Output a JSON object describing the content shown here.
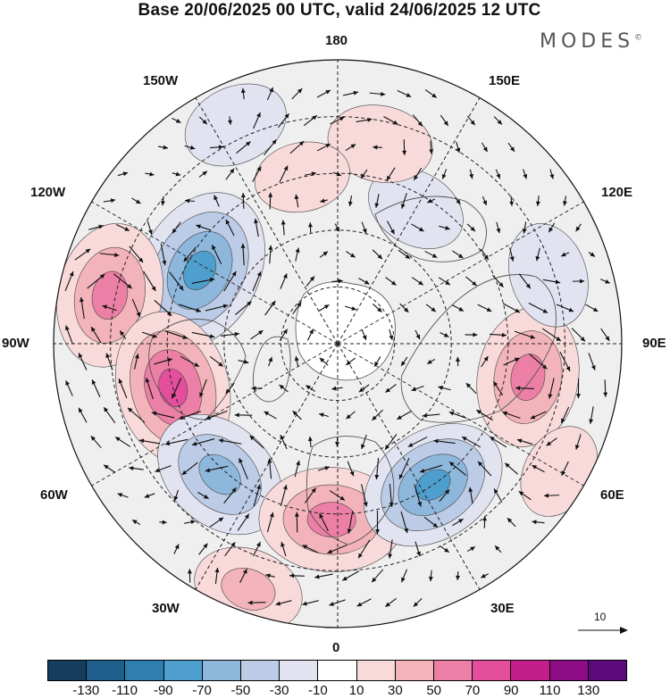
{
  "title": "Base 20/06/2025 00 UTC, valid 24/06/2025 12 UTC",
  "brand": "MODES",
  "brand_mark": "©",
  "longitude_labels": {
    "top": "180",
    "top_left": "150W",
    "top_right": "150E",
    "upper_left": "120W",
    "upper_right": "120E",
    "left": "90W",
    "right": "90E",
    "lower_left": "60W",
    "lower_right": "60E",
    "bottom_left": "30W",
    "bottom_right": "30E",
    "bottom": "0"
  },
  "wind_scale": {
    "label": "10",
    "icon": "arrow-right-icon"
  },
  "colorbar": {
    "colors": [
      "#163e5c",
      "#1f5f8b",
      "#2e7fb0",
      "#4f9fce",
      "#8eb7dc",
      "#bccce6",
      "#e2e3f1",
      "#ffffff",
      "#f8dada",
      "#f2b4ba",
      "#ec7fa5",
      "#e34f9c",
      "#c41e8a",
      "#8d0d86",
      "#5a0a7a"
    ],
    "ticks": [
      "-130",
      "-110",
      "-90",
      "-70",
      "-50",
      "-30",
      "-10",
      "10",
      "30",
      "50",
      "70",
      "90",
      "110",
      "130"
    ]
  },
  "map_colors": {
    "neutral": "#efefef",
    "ocean_white": "#ffffff",
    "coast": "#555555"
  },
  "anomalies": [
    {
      "lon": -118,
      "r": 0.55,
      "value": -95
    },
    {
      "lon": -102,
      "r": 0.82,
      "value": 75
    },
    {
      "lon": -75,
      "r": 0.6,
      "value": 85
    },
    {
      "lon": -42,
      "r": 0.62,
      "value": -70
    },
    {
      "lon": -20,
      "r": 0.92,
      "value": 40
    },
    {
      "lon": -2,
      "r": 0.62,
      "value": 75
    },
    {
      "lon": 34,
      "r": 0.6,
      "value": -80
    },
    {
      "lon": 80,
      "r": 0.68,
      "value": 70
    },
    {
      "lon": 108,
      "r": 0.78,
      "value": -35
    },
    {
      "lon": 150,
      "r": 0.55,
      "value": -30
    },
    {
      "lon": 168,
      "r": 0.72,
      "value": 35
    },
    {
      "lon": -155,
      "r": 0.85,
      "value": -35
    },
    {
      "lon": -168,
      "r": 0.6,
      "value": 25
    },
    {
      "lon": 60,
      "r": 0.9,
      "value": 25
    }
  ]
}
